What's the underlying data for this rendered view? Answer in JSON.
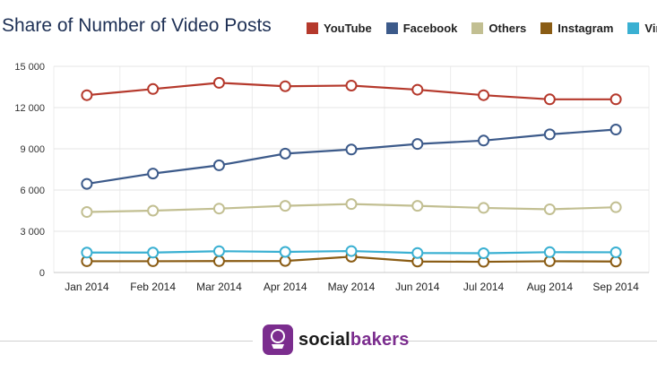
{
  "chart_data": {
    "type": "line",
    "title": "Share of Number of Video Posts",
    "categories": [
      "Jan 2014",
      "Feb 2014",
      "Mar 2014",
      "Apr 2014",
      "May 2014",
      "Jun 2014",
      "Jul 2014",
      "Aug 2014",
      "Sep 2014"
    ],
    "ylim": [
      0,
      15000
    ],
    "yticks": [
      0,
      3000,
      6000,
      9000,
      12000,
      15000
    ],
    "ytick_labels": [
      "0",
      "3 000",
      "6 000",
      "9 000",
      "12 000",
      "15 000"
    ],
    "grid": true,
    "legend_position": "top-right",
    "series": [
      {
        "name": "YouTube",
        "color": "#b5392c",
        "values": [
          12900,
          13350,
          13800,
          13550,
          13600,
          13300,
          12900,
          12600,
          12600
        ]
      },
      {
        "name": "Facebook",
        "color": "#3c5a8a",
        "values": [
          6450,
          7200,
          7800,
          8650,
          8950,
          9350,
          9600,
          10050,
          10400
        ]
      },
      {
        "name": "Others",
        "color": "#c2bf92",
        "values": [
          4400,
          4500,
          4650,
          4850,
          4980,
          4850,
          4700,
          4600,
          4750
        ]
      },
      {
        "name": "Instagram",
        "color": "#8a5c14",
        "values": [
          820,
          820,
          830,
          840,
          1150,
          800,
          780,
          820,
          800
        ]
      },
      {
        "name": "Vimeo",
        "color": "#3ab0d2",
        "values": [
          1450,
          1450,
          1550,
          1500,
          1560,
          1420,
          1400,
          1480,
          1470
        ]
      }
    ]
  },
  "footer": {
    "brand_prefix": "social",
    "brand_suffix": "bakers",
    "logo_icon": "socialbakers-logo-icon"
  }
}
